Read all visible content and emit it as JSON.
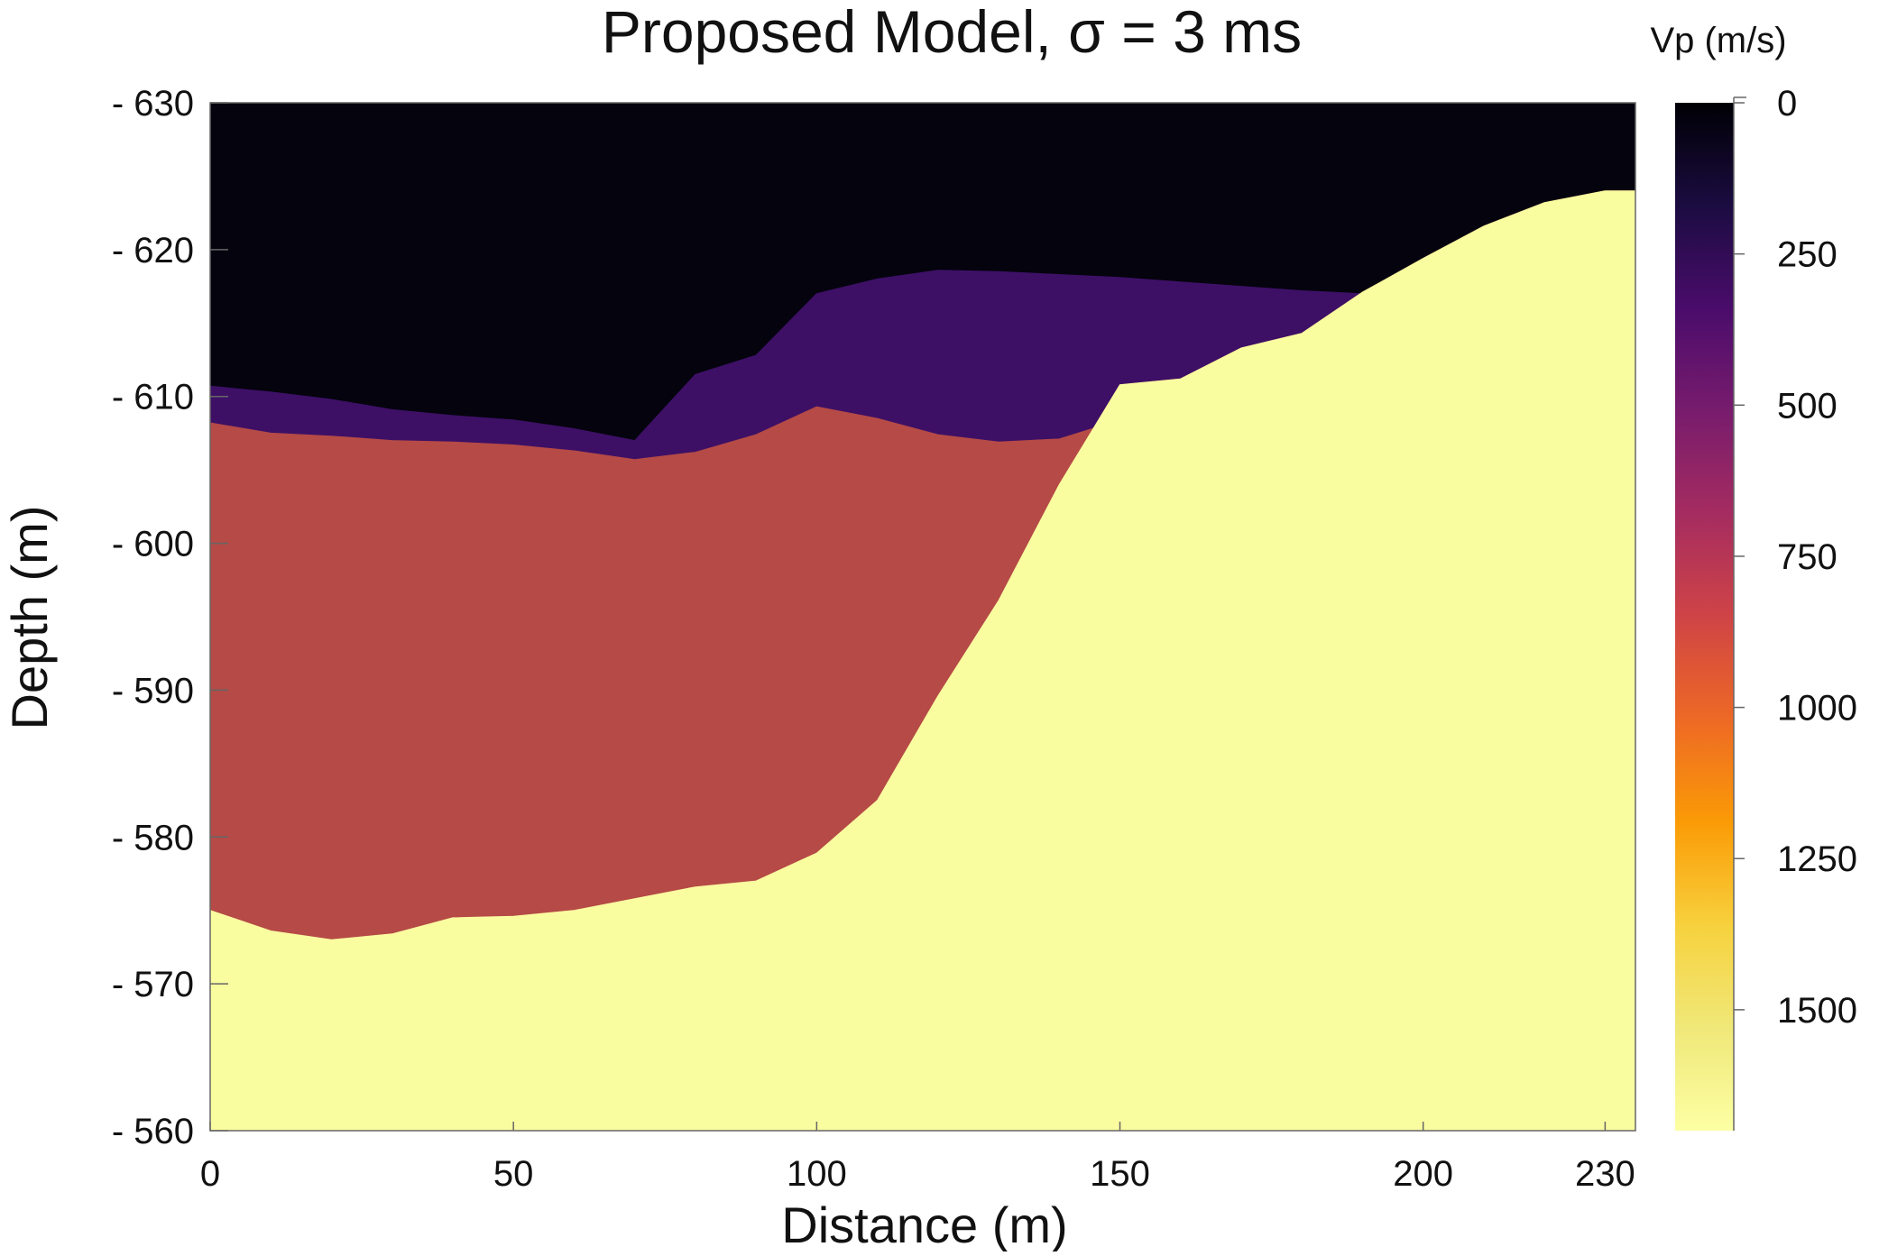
{
  "chart_data": {
    "type": "heatmap",
    "title": "Proposed Model, σ = 3 ms",
    "xlabel": "Distance (m)",
    "ylabel": "Depth (m)",
    "xlim": [
      0,
      235
    ],
    "ylim": [
      -630,
      -560
    ],
    "x_ticks": [
      0,
      50,
      100,
      150,
      200,
      230
    ],
    "x_tick_labels": [
      "0",
      "50",
      "100",
      "150",
      "200",
      "230"
    ],
    "y_ticks": [
      -630,
      -620,
      -610,
      -600,
      -590,
      -580,
      -570,
      -560
    ],
    "y_tick_labels": [
      "- 630",
      "- 620",
      "- 610",
      "- 600",
      "- 590",
      "- 580",
      "- 570",
      "- 560"
    ],
    "grid": false,
    "colorbar": {
      "label": "Vp (m/s)",
      "range": [
        0,
        1700
      ],
      "ticks": [
        0,
        250,
        500,
        750,
        1000,
        1250,
        1500
      ],
      "tick_labels": [
        "0",
        "250",
        "500",
        "750",
        "1000",
        "1250",
        "1500"
      ],
      "colormap": "inferno",
      "stops": [
        {
          "v": 0,
          "color": "#000004"
        },
        {
          "v": 170,
          "color": "#1b0c41"
        },
        {
          "v": 340,
          "color": "#4a0c6b"
        },
        {
          "v": 510,
          "color": "#781c6d"
        },
        {
          "v": 680,
          "color": "#a52c60"
        },
        {
          "v": 850,
          "color": "#cf4446"
        },
        {
          "v": 1020,
          "color": "#ed6925"
        },
        {
          "v": 1190,
          "color": "#fb9b06"
        },
        {
          "v": 1360,
          "color": "#f7d13d"
        },
        {
          "v": 1530,
          "color": "#f0e878"
        },
        {
          "v": 1700,
          "color": "#fcffa4"
        }
      ]
    },
    "layers": [
      {
        "vp": 30,
        "color": "#05030e"
      },
      {
        "vp": 400,
        "color": "#3d1066"
      },
      {
        "vp": 950,
        "color": "#b54a46"
      },
      {
        "vp": 1700,
        "color": "#fafca0"
      }
    ],
    "boundaries": {
      "x": [
        0,
        10,
        20,
        30,
        40,
        50,
        60,
        70,
        80,
        90,
        100,
        110,
        120,
        130,
        140,
        150,
        160,
        170,
        180,
        190,
        200,
        210,
        220,
        230,
        235
      ],
      "air_layer1_depth": [
        -610.7,
        -610.3,
        -609.8,
        -609.1,
        -608.7,
        -608.4,
        -607.8,
        -607.0,
        -611.5,
        -612.8,
        -617.0,
        -618.0,
        -618.6,
        -618.5,
        -618.3,
        -618.1,
        -617.8,
        -617.5,
        -617.2,
        -617.0,
        -616.3,
        -615.8,
        -614.7,
        -612.5,
        -611.8
      ],
      "layer1_layer2_depth": [
        -608.2,
        -607.5,
        -607.3,
        -607.0,
        -606.9,
        -606.7,
        -606.3,
        -605.7,
        -606.2,
        -607.4,
        -609.3,
        -608.5,
        -607.4,
        -606.9,
        -607.1,
        -608.4,
        -610.5,
        -610.9,
        -610.5,
        -610.6,
        -610.4,
        -610.4,
        -610.3,
        -610.0,
        -610.0
      ],
      "layer2_layer3_depth": [
        -575.0,
        -573.6,
        -573.0,
        -573.4,
        -574.5,
        -574.6,
        -575.0,
        -575.8,
        -576.6,
        -577.0,
        -578.9,
        -582.5,
        -589.6,
        -596.1,
        -604.0,
        -610.8,
        -611.2,
        -613.3,
        -614.3,
        -617.1,
        -619.4,
        -621.6,
        -623.2,
        -624.0,
        -624.0
      ]
    }
  }
}
